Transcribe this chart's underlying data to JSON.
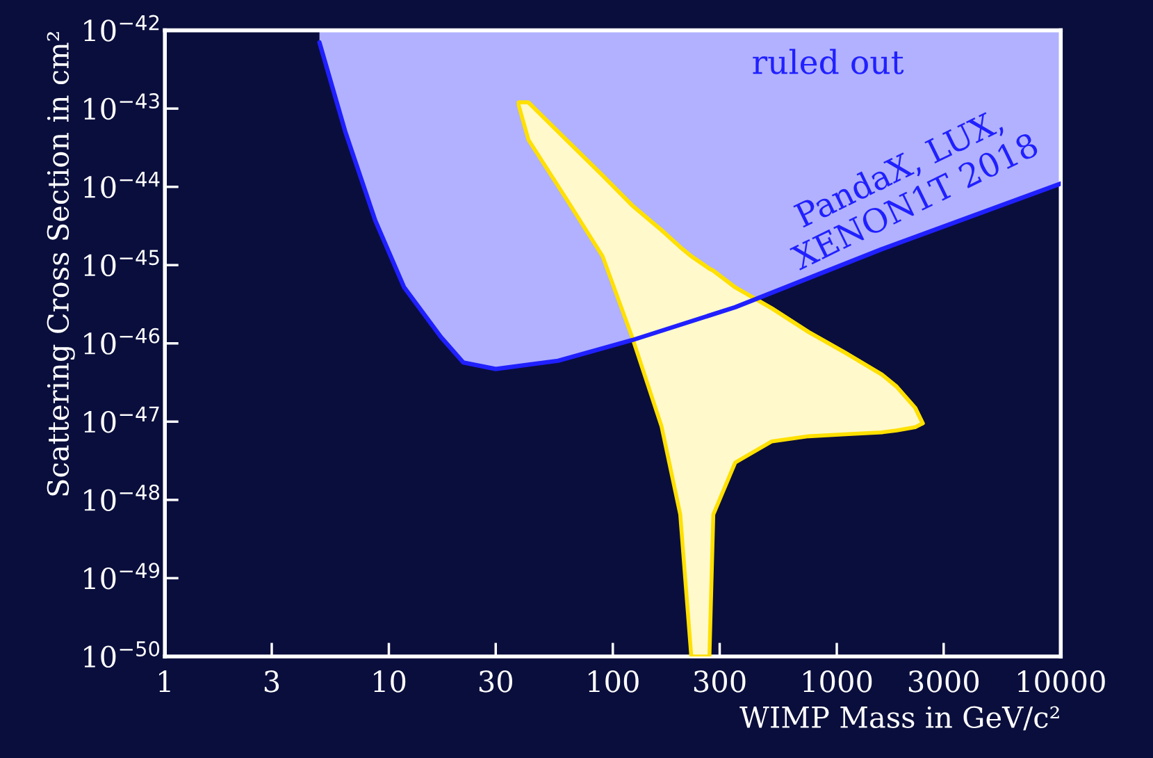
{
  "chart_data": {
    "type": "line",
    "xlabel": "WIMP Mass in GeV/c²",
    "ylabel": "Scattering Cross Section in cm²",
    "log": "xy",
    "grid": false,
    "legend": false,
    "xlim": [
      1,
      10000
    ],
    "ylim": [
      1e-50,
      1e-42
    ],
    "xticks": [
      1,
      3,
      10,
      30,
      100,
      300,
      1000,
      3000,
      10000
    ],
    "yticks": [
      {
        "value": 1e-42,
        "label": "10$^{−42}$"
      },
      {
        "value": 1e-43,
        "label": "10$^{−43}$"
      },
      {
        "value": 1e-44,
        "label": "10$^{−44}$"
      },
      {
        "value": 1e-45,
        "label": "10$^{−45}$"
      },
      {
        "value": 1e-46,
        "label": "10$^{−46}$"
      },
      {
        "value": 1e-47,
        "label": "10$^{−47}$"
      },
      {
        "value": 1e-48,
        "label": "10$^{−48}$"
      },
      {
        "value": 1e-49,
        "label": "10$^{−49}$"
      },
      {
        "value": 1e-50,
        "label": "10$^{−50}$"
      }
    ],
    "series": [
      {
        "color": "#2020ff",
        "x": [
          4.9,
          6.4,
          8.7,
          11.7,
          17.1,
          21.5,
          30,
          57,
          122,
          352,
          1590,
          10000
        ],
        "values": [
          7e-43,
          5e-44,
          3.7e-45,
          5.2e-46,
          1.2e-46,
          5.7e-47,
          4.7e-47,
          6e-47,
          1.1e-46,
          2.9e-46,
          1.6e-45,
          1.1e-44
        ],
        "lower": [
          7e-43,
          5e-44,
          3.7e-45,
          5.2e-46,
          1.2e-46,
          5.7e-47,
          4.7e-47,
          6e-47,
          1.1e-46,
          2.9e-46,
          1.6e-45,
          1.1e-44
        ],
        "upper": [
          1e-42,
          1e-42,
          1e-42,
          1e-42,
          1e-42,
          1e-42,
          1e-42,
          1e-42,
          1e-42,
          1e-42,
          1e-42,
          1e-42
        ]
      },
      {
        "color": "#ffe000",
        "x": [
          38,
          42,
          62,
          90,
          122,
          165,
          200,
          224,
          270,
          281,
          352,
          513,
          748,
          1090,
          1590,
          1850,
          2240,
          2420
        ],
        "values": [
          1.2e-43,
          1.2e-43,
          4e-44,
          1.4e-44,
          5.8e-45,
          2.8e-45,
          1.7e-45,
          1.3e-45,
          9e-46,
          8.5e-46,
          5.2e-46,
          2.8e-46,
          1.4e-46,
          7.6e-47,
          4e-47,
          2.8e-47,
          1.5e-47,
          9.5e-48
        ],
        "upper": [
          1.2e-43,
          1.2e-43,
          4e-44,
          1.4e-44,
          5.8e-45,
          2.8e-45,
          1.7e-45,
          1.3e-45,
          9e-46,
          8.5e-46,
          5.2e-46,
          2.8e-46,
          1.4e-46,
          7.6e-47,
          4e-47,
          2.8e-47,
          1.5e-47,
          9.5e-48
        ],
        "lower": [
          1.1e-43,
          4e-44,
          7e-45,
          1.3e-45,
          1.2e-46,
          8.7e-48,
          6.5e-49,
          1e-50,
          1e-50,
          6.5e-49,
          3e-48,
          5.6e-48,
          6.5e-48,
          6.9e-48,
          7.3e-48,
          7.7e-48,
          8.5e-48,
          9.5e-48
        ]
      }
    ],
    "annotations": [
      "ruled out",
      "PandaX, LUX,\nXENON1T 2018"
    ]
  }
}
